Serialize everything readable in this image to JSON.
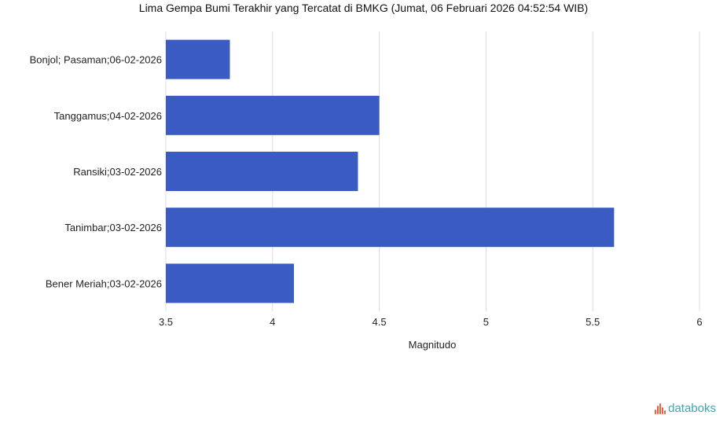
{
  "chart_data": {
    "type": "bar",
    "orientation": "horizontal",
    "title": "Lima Gempa Bumi Terakhir yang Tercatat di BMKG (Jumat, 06 Februari 2026 04:52:54 WIB)",
    "xlabel": "Magnitudo",
    "ylabel": "",
    "categories": [
      "Bonjol; Pasaman;06-02-2026",
      "Tanggamus;04-02-2026",
      "Ransiki;03-02-2026",
      "Tanimbar;03-02-2026",
      "Bener Meriah;03-02-2026"
    ],
    "values": [
      3.8,
      4.5,
      4.4,
      5.6,
      4.1
    ],
    "xlim": [
      3.5,
      6
    ],
    "xticks": [
      "3.5",
      "4",
      "4.5",
      "5",
      "5.5",
      "6"
    ],
    "grid": true,
    "bar_color": "#3a5cc2"
  },
  "brand": {
    "text": "databoks"
  }
}
